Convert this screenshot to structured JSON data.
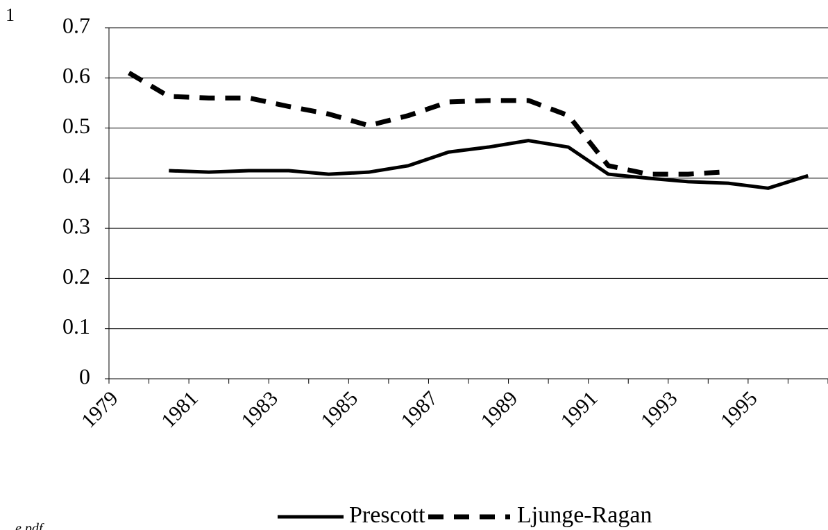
{
  "page_number": "1",
  "corner_note": "e.pdf",
  "chart_data": {
    "type": "line",
    "categories": [
      "1979",
      null,
      "1981",
      null,
      "1983",
      null,
      "1985",
      null,
      "1987",
      null,
      "1989",
      null,
      "1991",
      null,
      "1993",
      null,
      "1995",
      null
    ],
    "series": [
      {
        "name": "Prescott",
        "color": "#000000",
        "dash": false,
        "values": [
          null,
          0.415,
          0.412,
          0.415,
          0.415,
          0.408,
          0.412,
          0.425,
          0.452,
          0.462,
          0.475,
          0.462,
          0.408,
          0.4,
          0.393,
          0.39,
          0.38,
          0.405
        ]
      },
      {
        "name": "Ljunge-Ragan",
        "color": "#000000",
        "dash": true,
        "values": [
          0.61,
          0.563,
          0.56,
          0.56,
          0.543,
          0.528,
          0.505,
          0.525,
          0.552,
          0.555,
          0.555,
          0.525,
          0.425,
          0.408,
          0.408,
          0.413,
          null,
          null
        ]
      }
    ],
    "ylim": [
      0,
      0.7
    ],
    "yticks": [
      0,
      0.1,
      0.2,
      0.3,
      0.4,
      0.5,
      0.6,
      0.7
    ],
    "grid": true,
    "legend": "bottom"
  }
}
